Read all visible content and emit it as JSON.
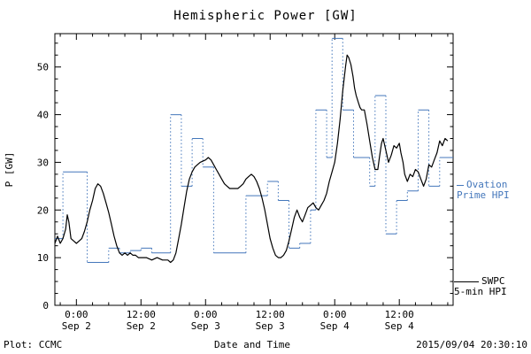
{
  "title": "Hemispheric Power [GW]",
  "footer": {
    "left": "Plot: CCMC",
    "xlabel": "Date and Time",
    "right": "2015/09/04 20:30:10"
  },
  "legend": {
    "ovation": {
      "line1": "Ovation",
      "line2": "Prime HPI",
      "color": "#4477bb"
    },
    "swpc": {
      "line1": "SWPC",
      "line2": "5-min HPI",
      "color": "#000000"
    }
  },
  "chart_data": {
    "type": "line",
    "title": "Hemispheric Power [GW]",
    "xlabel": "Date and Time",
    "ylabel": "P [GW]",
    "ylim": [
      0,
      57
    ],
    "yticks": [
      0,
      10,
      20,
      30,
      40,
      50
    ],
    "x_unit": "hours since Sep 1 20:00",
    "xlim": [
      0,
      74
    ],
    "xticks": [
      {
        "h": 4,
        "l1": "0:00",
        "l2": "Sep 2"
      },
      {
        "h": 16,
        "l1": "12:00",
        "l2": "Sep 2"
      },
      {
        "h": 28,
        "l1": "0:00",
        "l2": "Sep 3"
      },
      {
        "h": 40,
        "l1": "12:00",
        "l2": "Sep 3"
      },
      {
        "h": 52,
        "l1": "0:00",
        "l2": "Sep 4"
      },
      {
        "h": 64,
        "l1": "12:00",
        "l2": "Sep 4"
      }
    ],
    "series": [
      {
        "name": "SWPC 5-min HPI",
        "style": "line",
        "color": "#000000",
        "points": [
          [
            0,
            13
          ],
          [
            0.5,
            14.5
          ],
          [
            1,
            13
          ],
          [
            1.5,
            14
          ],
          [
            2,
            16
          ],
          [
            2.3,
            19
          ],
          [
            2.6,
            17.5
          ],
          [
            3,
            14
          ],
          [
            3.5,
            13.5
          ],
          [
            4,
            13
          ],
          [
            4.5,
            13.5
          ],
          [
            5,
            14
          ],
          [
            5.5,
            15.5
          ],
          [
            6,
            17.5
          ],
          [
            6.5,
            20
          ],
          [
            7,
            22
          ],
          [
            7.5,
            24.5
          ],
          [
            8,
            25.5
          ],
          [
            8.5,
            25
          ],
          [
            9,
            23.5
          ],
          [
            9.5,
            21.5
          ],
          [
            10,
            19.5
          ],
          [
            10.5,
            17
          ],
          [
            11,
            14.5
          ],
          [
            11.5,
            12.5
          ],
          [
            12,
            11
          ],
          [
            12.5,
            10.5
          ],
          [
            13,
            11
          ],
          [
            13.5,
            10.5
          ],
          [
            14,
            11
          ],
          [
            14.5,
            10.5
          ],
          [
            15,
            10.5
          ],
          [
            15.5,
            10
          ],
          [
            16,
            10
          ],
          [
            17,
            10
          ],
          [
            18,
            9.5
          ],
          [
            19,
            10
          ],
          [
            20,
            9.5
          ],
          [
            21,
            9.5
          ],
          [
            21.5,
            9
          ],
          [
            22,
            9.5
          ],
          [
            22.5,
            11
          ],
          [
            23,
            14
          ],
          [
            23.5,
            17
          ],
          [
            24,
            20.5
          ],
          [
            24.5,
            24
          ],
          [
            25,
            26.5
          ],
          [
            25.5,
            28
          ],
          [
            26,
            29
          ],
          [
            26.5,
            29.5
          ],
          [
            27,
            30
          ],
          [
            28,
            30.5
          ],
          [
            28.5,
            31
          ],
          [
            29,
            30.5
          ],
          [
            29.5,
            29.5
          ],
          [
            30,
            28.5
          ],
          [
            30.5,
            27.5
          ],
          [
            31,
            26.5
          ],
          [
            31.5,
            25.5
          ],
          [
            32,
            25
          ],
          [
            32.5,
            24.5
          ],
          [
            33,
            24.5
          ],
          [
            34,
            24.5
          ],
          [
            34.5,
            25
          ],
          [
            35,
            25.5
          ],
          [
            35.5,
            26.5
          ],
          [
            36,
            27
          ],
          [
            36.5,
            27.5
          ],
          [
            37,
            27
          ],
          [
            37.5,
            26
          ],
          [
            38,
            24.5
          ],
          [
            38.5,
            22.5
          ],
          [
            39,
            20
          ],
          [
            39.5,
            17
          ],
          [
            40,
            14
          ],
          [
            40.5,
            12
          ],
          [
            41,
            10.5
          ],
          [
            41.5,
            10
          ],
          [
            42,
            10
          ],
          [
            42.5,
            10.5
          ],
          [
            43,
            11.5
          ],
          [
            43.5,
            13.5
          ],
          [
            44,
            16
          ],
          [
            44.5,
            18.5
          ],
          [
            45,
            20
          ],
          [
            45.5,
            18.5
          ],
          [
            46,
            17.5
          ],
          [
            46.5,
            19
          ],
          [
            47,
            20.5
          ],
          [
            47.5,
            21
          ],
          [
            48,
            21.5
          ],
          [
            48.5,
            20.5
          ],
          [
            49,
            20
          ],
          [
            49.5,
            21
          ],
          [
            50,
            22
          ],
          [
            50.5,
            23.5
          ],
          [
            51,
            26
          ],
          [
            51.5,
            28
          ],
          [
            52,
            30
          ],
          [
            52.5,
            34
          ],
          [
            53,
            39
          ],
          [
            53.5,
            45
          ],
          [
            54,
            50
          ],
          [
            54.3,
            52.5
          ],
          [
            54.6,
            52
          ],
          [
            55,
            50.5
          ],
          [
            55.4,
            48
          ],
          [
            55.7,
            45.5
          ],
          [
            56,
            44
          ],
          [
            56.4,
            42.5
          ],
          [
            56.7,
            41.5
          ],
          [
            57,
            41
          ],
          [
            57.5,
            41
          ],
          [
            58,
            38
          ],
          [
            58.5,
            34.5
          ],
          [
            59,
            31
          ],
          [
            59.5,
            28.5
          ],
          [
            60,
            28.5
          ],
          [
            60.3,
            31
          ],
          [
            60.7,
            34
          ],
          [
            61,
            35
          ],
          [
            61.3,
            33.5
          ],
          [
            61.7,
            31.5
          ],
          [
            62,
            30
          ],
          [
            62.5,
            31.5
          ],
          [
            63,
            33.5
          ],
          [
            63.5,
            33
          ],
          [
            64,
            34
          ],
          [
            64.3,
            32
          ],
          [
            64.7,
            30
          ],
          [
            65,
            27.5
          ],
          [
            65.5,
            26
          ],
          [
            66,
            27.5
          ],
          [
            66.5,
            27
          ],
          [
            67,
            28.5
          ],
          [
            67.5,
            28
          ],
          [
            68,
            26.5
          ],
          [
            68.5,
            25
          ],
          [
            69,
            26.5
          ],
          [
            69.5,
            29.5
          ],
          [
            70,
            29
          ],
          [
            70.5,
            30.5
          ],
          [
            71,
            32
          ],
          [
            71.5,
            34.5
          ],
          [
            72,
            33.5
          ],
          [
            72.5,
            35
          ],
          [
            73,
            34.5
          ]
        ]
      },
      {
        "name": "Ovation Prime HPI",
        "style": "step-dotted",
        "color": "#4477bb",
        "points": [
          [
            0,
            14
          ],
          [
            1.5,
            28
          ],
          [
            6,
            9
          ],
          [
            10,
            12
          ],
          [
            12,
            11
          ],
          [
            14,
            11.5
          ],
          [
            16,
            12
          ],
          [
            18,
            11
          ],
          [
            21.5,
            40
          ],
          [
            23.5,
            25
          ],
          [
            25.5,
            35
          ],
          [
            27.5,
            29
          ],
          [
            29.5,
            11
          ],
          [
            35.5,
            23
          ],
          [
            39.5,
            26
          ],
          [
            41.5,
            22
          ],
          [
            43.5,
            12
          ],
          [
            45.5,
            13
          ],
          [
            47.5,
            20
          ],
          [
            48.5,
            41
          ],
          [
            50.5,
            31
          ],
          [
            51.5,
            56
          ],
          [
            53.5,
            41
          ],
          [
            55.5,
            31
          ],
          [
            58.5,
            25
          ],
          [
            59.5,
            44
          ],
          [
            61.5,
            15
          ],
          [
            63.5,
            22
          ],
          [
            65.5,
            24
          ],
          [
            67.5,
            41
          ],
          [
            69.5,
            25
          ],
          [
            71.5,
            31
          ],
          [
            74,
            31
          ]
        ]
      }
    ]
  }
}
